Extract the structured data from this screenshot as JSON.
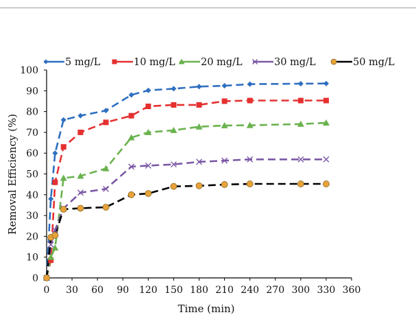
{
  "chart_data": {
    "type": "line",
    "xlabel": "Time (min)",
    "ylabel": "Removal Efficiency (%)",
    "xlim": [
      0,
      360
    ],
    "ylim": [
      0,
      100
    ],
    "x_ticks": [
      "0",
      "30",
      "60",
      "90",
      "120",
      "150",
      "180",
      "210",
      "240",
      "270",
      "300",
      "330",
      "360"
    ],
    "y_ticks": [
      "0",
      "10",
      "20",
      "30",
      "40",
      "50",
      "60",
      "70",
      "80",
      "90",
      "100"
    ],
    "grid": false,
    "legend_position": "top",
    "x": [
      0,
      5,
      10,
      20,
      40,
      70,
      100,
      120,
      150,
      180,
      210,
      240,
      300,
      330
    ],
    "series": [
      {
        "name": "5 mg/L",
        "color": "#2e6fc0",
        "marker": "diamond",
        "values": [
          0,
          38,
          60,
          76,
          78,
          80.5,
          88,
          90.2,
          91,
          92,
          92.4,
          93.2,
          93.4,
          93.5
        ]
      },
      {
        "name": "10 mg/L",
        "color": "#e53030",
        "marker": "square",
        "values": [
          0,
          8.5,
          46,
          63,
          70,
          74.8,
          78,
          82.5,
          83.2,
          83.2,
          85,
          85.3,
          85.3,
          85.3
        ]
      },
      {
        "name": "20 mg/L",
        "color": "#6ab24e",
        "marker": "triangle",
        "values": [
          0,
          10,
          14.5,
          48,
          49,
          52.6,
          67.5,
          70,
          71,
          72.7,
          73.3,
          73.4,
          74,
          74.6
        ]
      },
      {
        "name": "30 mg/L",
        "color": "#7b58a6",
        "marker": "cross",
        "values": [
          0,
          16,
          23,
          33.4,
          41,
          42.8,
          53.5,
          54,
          54.6,
          55.8,
          56.4,
          57,
          57,
          57
        ]
      },
      {
        "name": "50 mg/L",
        "color": "#000000",
        "marker": "circle",
        "marker_fill": "#e8a23c",
        "values": [
          0,
          19.5,
          20.5,
          33,
          33.5,
          34,
          40,
          40.6,
          44,
          44.3,
          44.9,
          45.2,
          45.2,
          45.2
        ]
      }
    ]
  }
}
